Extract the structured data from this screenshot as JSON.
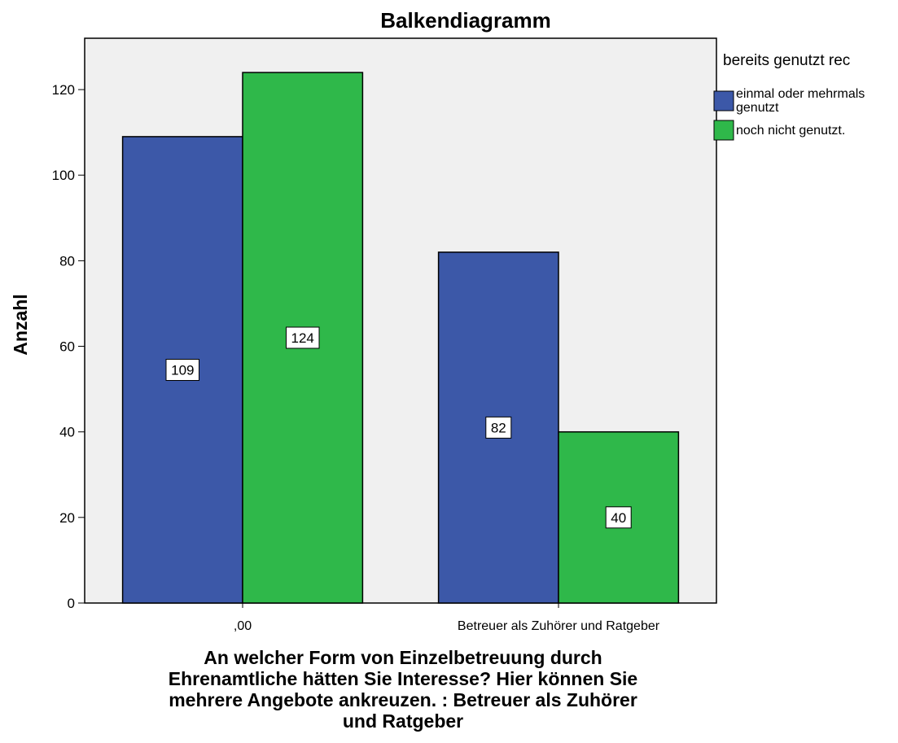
{
  "chart_data": {
    "type": "bar",
    "title": "Balkendiagramm",
    "ylabel": "Anzahl",
    "xlabel_lines": [
      "An welcher Form von Einzelbetreuung durch",
      "Ehrenamtliche hätten Sie Interesse? Hier können Sie",
      "mehrere Angebote ankreuzen. : Betreuer als Zuhörer",
      "und Ratgeber"
    ],
    "categories": [
      ",00",
      "Betreuer als Zuhörer und Ratgeber"
    ],
    "series": [
      {
        "name": "einmal oder mehrmals genutzt",
        "name_lines": [
          "einmal oder mehrmals",
          "genutzt"
        ],
        "values": [
          109,
          82
        ],
        "color": "#3c58a8"
      },
      {
        "name": "noch nicht genutzt.",
        "name_lines": [
          "noch nicht genutzt."
        ],
        "values": [
          124,
          40
        ],
        "color": "#2fb84a"
      }
    ],
    "data_labels": [
      [
        "109",
        "82"
      ],
      [
        "124",
        "40"
      ]
    ],
    "ylim": [
      0,
      132
    ],
    "yticks": [
      0,
      20,
      40,
      60,
      80,
      100,
      120
    ],
    "ytick_labels": [
      "0",
      "20",
      "40",
      "60",
      "80",
      "100",
      "120"
    ],
    "legend": {
      "title": "bereits genutzt rec",
      "position": "right"
    },
    "grid": false,
    "plot_background": "#f0f0f0",
    "bar_border": "#000000"
  }
}
